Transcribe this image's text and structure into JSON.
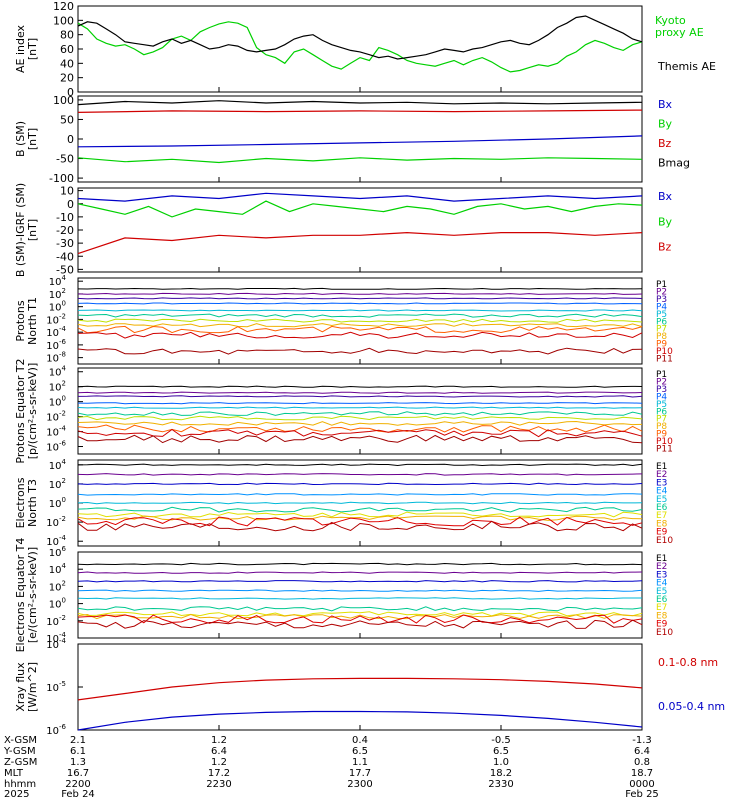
{
  "colors": {
    "black": "#000000",
    "green": "#00d000",
    "blue": "#0000c8",
    "red": "#d00000",
    "P1": "#000000",
    "P2": "#6a0090",
    "P3": "#3a00a0",
    "P4": "#0060ff",
    "P5": "#00b8d8",
    "P6": "#00c890",
    "P7": "#c0e000",
    "P8": "#f0b000",
    "P9": "#ff6000",
    "P10": "#d00000",
    "P11": "#a00000",
    "E1": "#000000",
    "E2": "#6a0090",
    "E3": "#0000c8",
    "E4": "#0090ff",
    "E5": "#00b8d8",
    "E6": "#00c890",
    "E7": "#e0e000",
    "E8": "#f0b000",
    "E9": "#e00000",
    "E10": "#b00000"
  },
  "chart_data": [
    {
      "type": "line",
      "ylabel": "AE index [nT]",
      "y_ticks": [
        "0",
        "20",
        "40",
        "60",
        "80",
        "100",
        "120"
      ],
      "ylim": [
        0,
        120
      ],
      "series": [
        {
          "name": "Kyoto proxy AE",
          "color": "green",
          "x": [
            0,
            2,
            4,
            6,
            8,
            10,
            12,
            14,
            16,
            18,
            20,
            22,
            24,
            26,
            28,
            30,
            32,
            34,
            36,
            38,
            40,
            42,
            44,
            46,
            48,
            50,
            52,
            54,
            56,
            58,
            60,
            62,
            64,
            66,
            68,
            70,
            72,
            74,
            76,
            78,
            80,
            82,
            84,
            86,
            88,
            90,
            92,
            94,
            96,
            98,
            100,
            102,
            104,
            106,
            108,
            110,
            112,
            114,
            116,
            118,
            120
          ],
          "y": [
            96,
            88,
            74,
            68,
            64,
            66,
            60,
            52,
            56,
            62,
            74,
            78,
            72,
            84,
            90,
            95,
            98,
            96,
            90,
            62,
            52,
            48,
            40,
            56,
            60,
            52,
            44,
            36,
            32,
            40,
            48,
            44,
            62,
            58,
            52,
            44,
            40,
            38,
            36,
            40,
            44,
            38,
            44,
            48,
            42,
            34,
            28,
            30,
            34,
            38,
            36,
            40,
            50,
            56,
            66,
            72,
            68,
            62,
            58,
            66,
            70
          ]
        },
        {
          "name": "Themis AE",
          "color": "black",
          "x": [
            0,
            2,
            4,
            6,
            8,
            10,
            12,
            14,
            16,
            18,
            20,
            22,
            24,
            26,
            28,
            30,
            32,
            34,
            36,
            38,
            40,
            42,
            44,
            46,
            48,
            50,
            52,
            54,
            56,
            58,
            60,
            62,
            64,
            66,
            68,
            70,
            72,
            74,
            76,
            78,
            80,
            82,
            84,
            86,
            88,
            90,
            92,
            94,
            96,
            98,
            100,
            102,
            104,
            106,
            108,
            110,
            112,
            114,
            116,
            118,
            120
          ],
          "y": [
            92,
            98,
            96,
            88,
            80,
            70,
            68,
            66,
            64,
            70,
            74,
            68,
            72,
            66,
            60,
            62,
            66,
            64,
            58,
            56,
            58,
            60,
            66,
            74,
            78,
            80,
            72,
            66,
            62,
            58,
            56,
            52,
            48,
            50,
            46,
            48,
            50,
            52,
            56,
            60,
            58,
            56,
            60,
            62,
            66,
            70,
            72,
            68,
            66,
            72,
            80,
            90,
            96,
            104,
            106,
            100,
            94,
            88,
            82,
            74,
            70
          ]
        }
      ],
      "legend": "right"
    },
    {
      "type": "line",
      "ylabel": "B (SM) [nT]",
      "y_ticks": [
        "-100",
        "-50",
        "0",
        "50",
        "100"
      ],
      "ylim": [
        -110,
        110
      ],
      "series": [
        {
          "name": "Bx",
          "color": "blue",
          "x": [
            0,
            20,
            40,
            60,
            80,
            100,
            120
          ],
          "y": [
            -20,
            -18,
            -14,
            -10,
            -6,
            0,
            8
          ]
        },
        {
          "name": "By",
          "color": "green",
          "x": [
            0,
            10,
            20,
            30,
            40,
            50,
            60,
            70,
            80,
            90,
            100,
            110,
            120
          ],
          "y": [
            -48,
            -58,
            -52,
            -60,
            -50,
            -56,
            -48,
            -54,
            -50,
            -52,
            -48,
            -50,
            -52
          ]
        },
        {
          "name": "Bz",
          "color": "red",
          "x": [
            0,
            20,
            40,
            60,
            80,
            100,
            120
          ],
          "y": [
            68,
            72,
            70,
            72,
            70,
            72,
            74
          ]
        },
        {
          "name": "Bmag",
          "color": "black",
          "x": [
            0,
            10,
            20,
            30,
            40,
            50,
            60,
            70,
            80,
            90,
            100,
            110,
            120
          ],
          "y": [
            88,
            96,
            92,
            98,
            92,
            96,
            92,
            94,
            90,
            92,
            90,
            92,
            94
          ]
        }
      ],
      "legend": "right"
    },
    {
      "type": "line",
      "ylabel": "B (SM)-IGRF (SM) [nT]",
      "y_ticks": [
        "-50",
        "-40",
        "-30",
        "-20",
        "-10",
        "0",
        "10"
      ],
      "ylim": [
        -52,
        12
      ],
      "series": [
        {
          "name": "Bx",
          "color": "blue",
          "x": [
            0,
            10,
            20,
            30,
            40,
            50,
            60,
            70,
            80,
            90,
            100,
            110,
            120
          ],
          "y": [
            4,
            2,
            6,
            4,
            8,
            6,
            4,
            6,
            2,
            4,
            6,
            4,
            6
          ]
        },
        {
          "name": "By",
          "color": "green",
          "x": [
            0,
            5,
            10,
            15,
            20,
            25,
            30,
            35,
            40,
            45,
            50,
            55,
            60,
            65,
            70,
            75,
            80,
            85,
            90,
            95,
            100,
            105,
            110,
            115,
            120
          ],
          "y": [
            0,
            -4,
            -8,
            -2,
            -10,
            -4,
            -6,
            -8,
            2,
            -6,
            0,
            -2,
            -4,
            -6,
            -2,
            -4,
            -8,
            -2,
            0,
            -4,
            -2,
            -6,
            -2,
            0,
            -1
          ]
        },
        {
          "name": "Bz",
          "color": "red",
          "x": [
            0,
            10,
            20,
            30,
            40,
            50,
            60,
            70,
            80,
            90,
            100,
            110,
            120
          ],
          "y": [
            -38,
            -26,
            -28,
            -24,
            -26,
            -24,
            -24,
            -22,
            -24,
            -22,
            -22,
            -24,
            -22
          ]
        }
      ],
      "legend": "right"
    },
    {
      "type": "line",
      "ylabel": "Protons North T1",
      "log": true,
      "y_ticks_exp": [
        4,
        2,
        0,
        -2,
        -4,
        -6,
        -8
      ],
      "ylim_exp": [
        -9,
        4.5
      ],
      "channels": [
        {
          "name": "P1",
          "y": 2.8
        },
        {
          "name": "P2",
          "y": 2.0
        },
        {
          "name": "P3",
          "y": 1.3
        },
        {
          "name": "P4",
          "y": 0.5
        },
        {
          "name": "P5",
          "y": -0.6
        },
        {
          "name": "P6",
          "y": -1.4
        },
        {
          "name": "P7",
          "y": -2.2
        },
        {
          "name": "P8",
          "y": -2.9
        },
        {
          "name": "P9",
          "y": -3.6
        },
        {
          "name": "P10",
          "y": -4.5
        },
        {
          "name": "P11",
          "y": -7.0
        }
      ],
      "legend": "right"
    },
    {
      "type": "line",
      "ylabel": "Protons Equator T2 [p/(cm²-s-sr-keV)]",
      "log": true,
      "y_ticks_exp": [
        4,
        2,
        0,
        -2,
        -4,
        -6
      ],
      "ylim_exp": [
        -7,
        4.5
      ],
      "channels": [
        {
          "name": "P1",
          "y": 2.0
        },
        {
          "name": "P2",
          "y": 1.2
        },
        {
          "name": "P3",
          "y": 0.7
        },
        {
          "name": "P4",
          "y": -0.2
        },
        {
          "name": "P5",
          "y": -0.8
        },
        {
          "name": "P6",
          "y": -1.6
        },
        {
          "name": "P7",
          "y": -2.2
        },
        {
          "name": "P8",
          "y": -2.9
        },
        {
          "name": "P9",
          "y": -3.6
        },
        {
          "name": "P10",
          "y": -4.2
        },
        {
          "name": "P11",
          "y": -5.0
        }
      ],
      "legend": "right"
    },
    {
      "type": "line",
      "ylabel": "Electrons North T3",
      "log": true,
      "y_ticks_exp": [
        4,
        2,
        0,
        -2,
        -4
      ],
      "ylim_exp": [
        -4.5,
        4.5
      ],
      "channels": [
        {
          "name": "E1",
          "y": 4.0
        },
        {
          "name": "E2",
          "y": 3.0
        },
        {
          "name": "E3",
          "y": 2.0
        },
        {
          "name": "E4",
          "y": 0.9
        },
        {
          "name": "E5",
          "y": 0.0
        },
        {
          "name": "E6",
          "y": -0.7
        },
        {
          "name": "E7",
          "y": -1.2
        },
        {
          "name": "E8",
          "y": -1.6
        },
        {
          "name": "E9",
          "y": -1.9
        },
        {
          "name": "E10",
          "y": -2.4
        }
      ],
      "legend": "right"
    },
    {
      "type": "line",
      "ylabel": "Electrons Equator T4 [e/(cm²-s-sr-keV)]",
      "log": true,
      "y_ticks_exp": [
        6,
        4,
        2,
        0,
        -2,
        -4
      ],
      "ylim_exp": [
        -4,
        6
      ],
      "channels": [
        {
          "name": "E1",
          "y": 4.6
        },
        {
          "name": "E2",
          "y": 3.6
        },
        {
          "name": "E3",
          "y": 2.6
        },
        {
          "name": "E4",
          "y": 1.5
        },
        {
          "name": "E5",
          "y": 0.6
        },
        {
          "name": "E6",
          "y": -0.6
        },
        {
          "name": "E7",
          "y": -1.2
        },
        {
          "name": "E8",
          "y": -1.5
        },
        {
          "name": "E9",
          "y": -1.8
        },
        {
          "name": "E10",
          "y": -2.4
        }
      ],
      "legend": "right"
    },
    {
      "type": "line",
      "ylabel": "Xray flux [W/m^2]",
      "log": true,
      "y_ticks_exp": [
        -4,
        -5,
        -6
      ],
      "ylim_exp": [
        -6,
        -4
      ],
      "series": [
        {
          "name": "0.1-0.8 nm",
          "color": "red",
          "x": [
            0,
            10,
            20,
            30,
            40,
            50,
            60,
            70,
            80,
            90,
            100,
            110,
            120
          ],
          "y": [
            -5.3,
            -5.15,
            -5.0,
            -4.9,
            -4.84,
            -4.81,
            -4.8,
            -4.8,
            -4.81,
            -4.83,
            -4.87,
            -4.93,
            -5.02
          ]
        },
        {
          "name": "0.05-0.4 nm",
          "color": "blue",
          "x": [
            0,
            10,
            20,
            30,
            40,
            50,
            60,
            70,
            80,
            90,
            100,
            110,
            120
          ],
          "y": [
            -6.0,
            -5.82,
            -5.7,
            -5.63,
            -5.59,
            -5.57,
            -5.57,
            -5.58,
            -5.61,
            -5.66,
            -5.73,
            -5.82,
            -5.93
          ]
        }
      ],
      "legend": "right"
    }
  ],
  "x_axis": {
    "columns": [
      {
        "xgsm": "2.1",
        "ygsm": "6.1",
        "zgsm": "1.3",
        "mlt": "16.7",
        "hhmm": "2200",
        "date": "Feb 24"
      },
      {
        "xgsm": "1.2",
        "ygsm": "6.4",
        "zgsm": "1.2",
        "mlt": "17.2",
        "hhmm": "2230",
        "date": ""
      },
      {
        "xgsm": "0.4",
        "ygsm": "6.5",
        "zgsm": "1.1",
        "mlt": "17.7",
        "hhmm": "2300",
        "date": ""
      },
      {
        "xgsm": "-0.5",
        "ygsm": "6.5",
        "zgsm": "1.0",
        "mlt": "18.2",
        "hhmm": "2330",
        "date": ""
      },
      {
        "xgsm": "-1.3",
        "ygsm": "6.4",
        "zgsm": "0.8",
        "mlt": "18.7",
        "hhmm": "0000",
        "date": "Feb 25"
      }
    ],
    "row_labels": [
      "X-GSM",
      "Y-GSM",
      "Z-GSM",
      "MLT",
      "hhmm",
      "2025"
    ],
    "xlim": [
      0,
      120
    ]
  }
}
